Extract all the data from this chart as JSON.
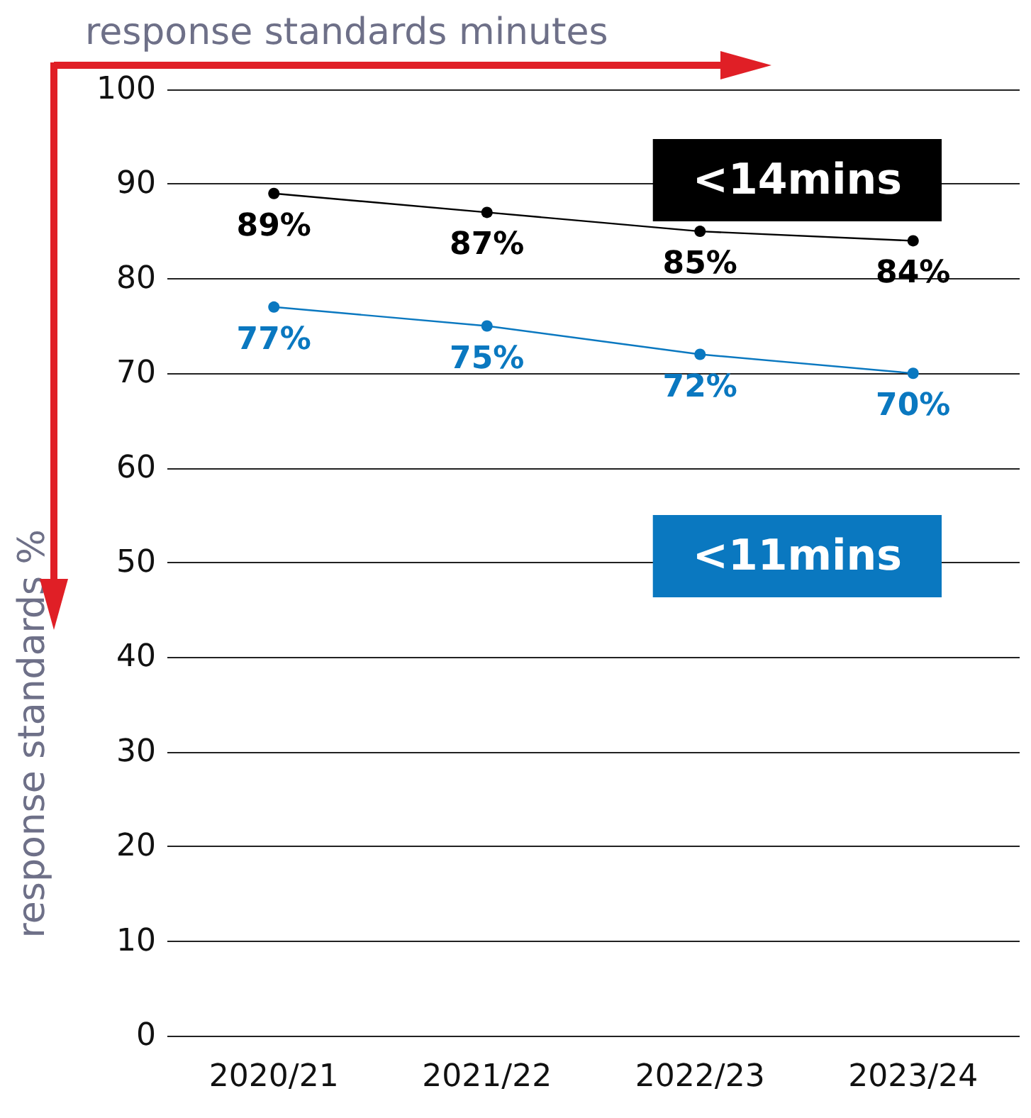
{
  "chart_data": {
    "type": "line",
    "xlabel": "response standards minutes",
    "ylabel": "response standards %",
    "categories": [
      "2020/21",
      "2021/22",
      "2022/23",
      "2023/24"
    ],
    "series": [
      {
        "name": "<14mins",
        "color": "#000000",
        "values": [
          89,
          87,
          85,
          84
        ],
        "value_labels": [
          "89%",
          "87%",
          "85%",
          "84%"
        ]
      },
      {
        "name": "<11mins",
        "color": "#0a78c0",
        "values": [
          77,
          75,
          72,
          70
        ],
        "value_labels": [
          "77%",
          "75%",
          "72%",
          "70%"
        ]
      }
    ],
    "ylim": [
      0,
      100
    ],
    "yticks": [
      0,
      10,
      20,
      30,
      40,
      50,
      60,
      70,
      80,
      90,
      100
    ],
    "grid": "y",
    "legend": false,
    "marker": "circle",
    "line_style": "solid"
  }
}
